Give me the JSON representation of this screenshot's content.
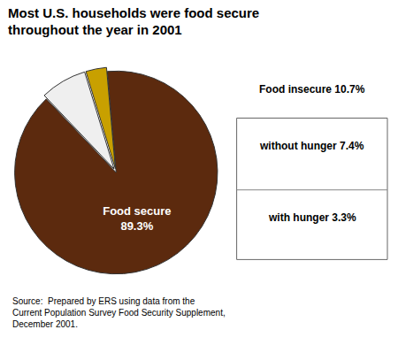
{
  "chart_data": {
    "type": "pie",
    "title": "Most U.S. households were food secure\nthroughout the year in 2001",
    "values": [
      89.3,
      7.4,
      3.3
    ],
    "colors": [
      "#5C2A0E",
      "#EFEFEF",
      "#C8A000"
    ],
    "annotations": [
      "Food secure\n89.3%",
      "Food insecure 10.7%",
      "without hunger 7.4%",
      "with hunger 3.3%",
      "Source:  Prepared by ERS using data from the\nCurrent Population Survey Food Security Supplement,\nDecember 2001."
    ]
  }
}
